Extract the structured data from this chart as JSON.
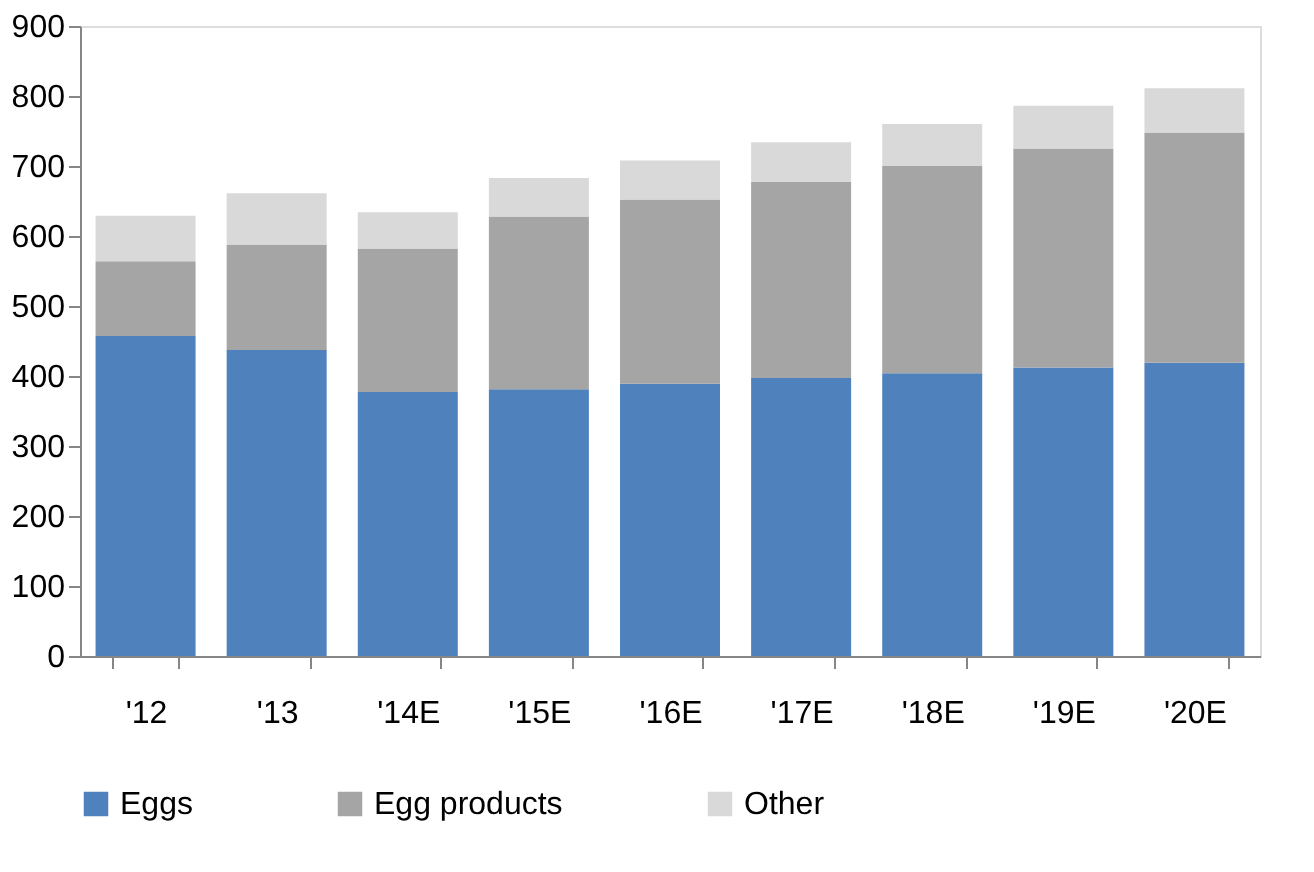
{
  "chart_data": {
    "type": "bar",
    "stacked": true,
    "categories": [
      "'12",
      "'13",
      "'14E",
      "'15E",
      "'16E",
      "'17E",
      "'18E",
      "'19E",
      "'20E"
    ],
    "series": [
      {
        "name": "Eggs",
        "color": "#4f81bd",
        "values": [
          457,
          437,
          377,
          381,
          389,
          397,
          404,
          412,
          419
        ]
      },
      {
        "name": "Egg products",
        "color": "#a5a5a5",
        "values": [
          107,
          151,
          205,
          247,
          263,
          280,
          296,
          313,
          329
        ]
      },
      {
        "name": "Other",
        "color": "#d9d9d9",
        "values": [
          65,
          73,
          52,
          55,
          56,
          57,
          60,
          61,
          63
        ]
      }
    ],
    "ylim": [
      0,
      900
    ],
    "yticks": [
      0,
      100,
      200,
      300,
      400,
      500,
      600,
      700,
      800,
      900
    ],
    "grid": false,
    "legend": "bottom"
  }
}
